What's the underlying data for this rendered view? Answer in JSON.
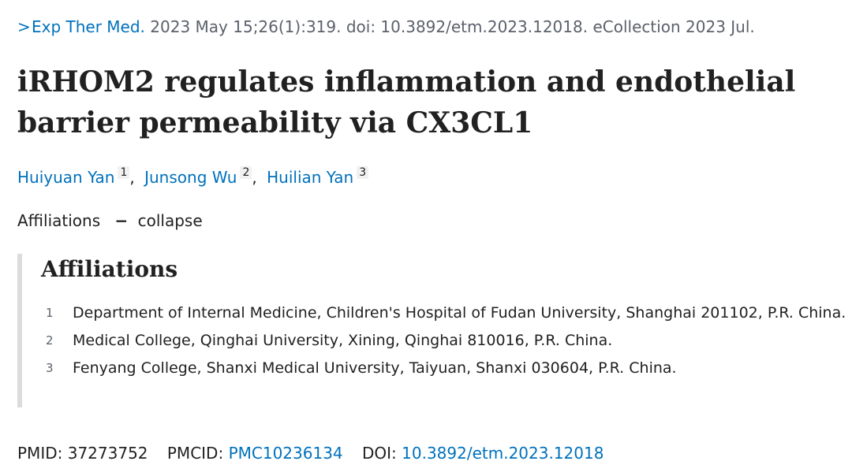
{
  "citation": {
    "chevron": ">",
    "journal": "Exp Ther Med.",
    "details": "2023 May 15;26(1):319. doi: 10.3892/etm.2023.12018. eCollection 2023 Jul."
  },
  "article": {
    "title": "iRHOM2 regulates inflammation and endothelial barrier permeability via CX3CL1"
  },
  "authors": [
    {
      "name": "Huiyuan Yan",
      "sup": "1"
    },
    {
      "name": "Junsong Wu",
      "sup": "2"
    },
    {
      "name": "Huilian Yan",
      "sup": "3"
    }
  ],
  "author_separator": ",",
  "affiliations_toggle": {
    "label": "Affiliations",
    "dash": "−",
    "action": "collapse"
  },
  "affiliations": {
    "heading": "Affiliations",
    "items": [
      {
        "num": "1",
        "text": "Department of Internal Medicine, Children's Hospital of Fudan University, Shanghai 201102, P.R. China."
      },
      {
        "num": "2",
        "text": "Medical College, Qinghai University, Xining, Qinghai 810016, P.R. China."
      },
      {
        "num": "3",
        "text": "Fenyang College, Shanxi Medical University, Taiyuan, Shanxi 030604, P.R. China."
      }
    ]
  },
  "identifiers": {
    "pmid_label": "PMID:",
    "pmid": "37273752",
    "pmcid_label": "PMCID:",
    "pmcid": "PMC10236134",
    "doi_label": "DOI:",
    "doi": "10.3892/etm.2023.12018"
  },
  "colors": {
    "link": "#0071bc",
    "text": "#212121",
    "muted": "#5b616b",
    "border": "#dcdcdc"
  }
}
